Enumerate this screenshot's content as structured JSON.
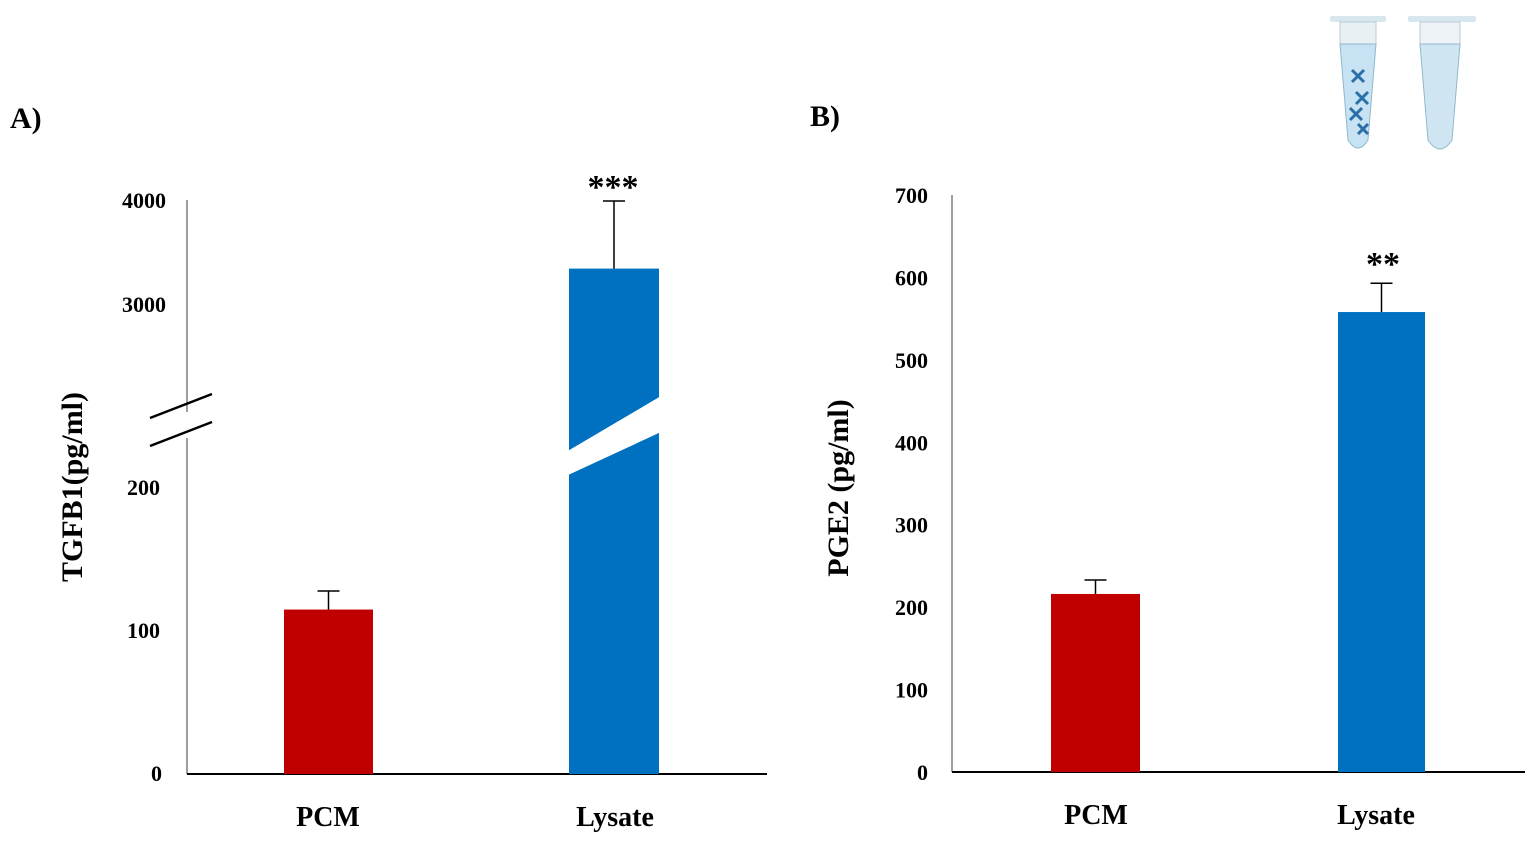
{
  "panels": {
    "a": {
      "label": "A)"
    },
    "b": {
      "label": "B)"
    }
  },
  "chart_data": [
    {
      "type": "bar",
      "panel": "A)",
      "categories": [
        "PCM",
        "Lysate"
      ],
      "values": [
        115,
        3350
      ],
      "error": [
        13,
        650
      ],
      "colors": [
        "#c00000",
        "#0070c0"
      ],
      "ylabel": "TGFB1(pg/ml)",
      "yticks": [
        "0",
        "100",
        "200",
        "3000",
        "4000"
      ],
      "axis_break": true,
      "significance": [
        "",
        "***"
      ],
      "ylim": [
        0,
        4000
      ]
    },
    {
      "type": "bar",
      "panel": "B)",
      "categories": [
        "PCM",
        "Lysate"
      ],
      "values": [
        216,
        558
      ],
      "error": [
        17,
        35
      ],
      "colors": [
        "#c00000",
        "#0070c0"
      ],
      "ylabel": "PGE2 (pg/ml)",
      "yticks": [
        "0",
        "100",
        "200",
        "300",
        "400",
        "500",
        "600",
        "700"
      ],
      "significance": [
        "",
        "**"
      ],
      "ylim": [
        0,
        700
      ]
    }
  ],
  "decor": {
    "tube_icon": "microcentrifuge-tubes-icon"
  }
}
